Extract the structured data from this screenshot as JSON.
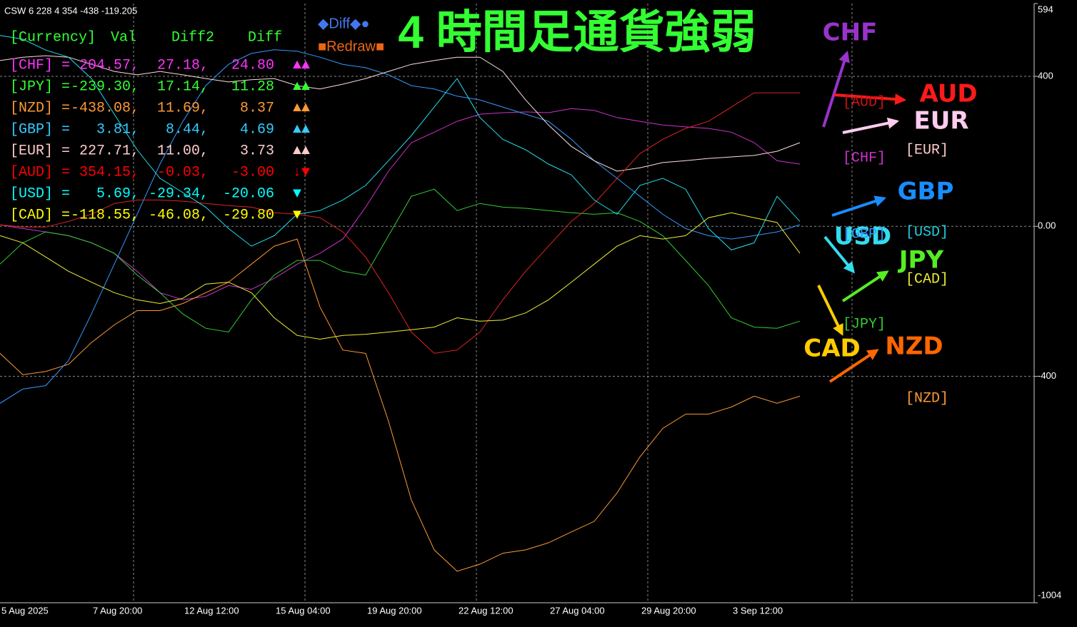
{
  "header": "CSW 6 228 4 354 -438 -119.205",
  "title": "4 時間足通貨強弱",
  "buttons": [
    "◆Diff◆●",
    "■Redraw■"
  ],
  "legend_table": {
    "header": [
      "[Currency]",
      "Val",
      "Diff2",
      "Diff"
    ],
    "rows": [
      {
        "color": "#ff33ff",
        "cells": [
          "[CHF] =",
          "204.57,",
          "27.18,",
          "24.80",
          "▲▲"
        ]
      },
      {
        "color": "#33ff33",
        "cells": [
          "[JPY] =",
          "-239.30,",
          "17.14,",
          "11.28",
          "▲▲"
        ]
      },
      {
        "color": "#ff9933",
        "cells": [
          "[NZD] =",
          "-438.08,",
          "11.69,",
          "8.37",
          "▲▲"
        ]
      },
      {
        "color": "#33ccff",
        "cells": [
          "[GBP] =",
          "3.81,",
          "8.44,",
          "4.69",
          "▲▲"
        ]
      },
      {
        "color": "#ffcccc",
        "cells": [
          "[EUR] =",
          "227.71,",
          "11.00,",
          "3.73",
          "▲▲"
        ]
      },
      {
        "color": "#ff0000",
        "cells": [
          "[AUD] =",
          "354.15,",
          "-0.03,",
          "-3.00",
          "↓▼"
        ]
      },
      {
        "color": "#00ffff",
        "cells": [
          "[USD] =",
          "5.69,",
          "-29.34,",
          "-20.06",
          "▼"
        ]
      },
      {
        "color": "#ffff00",
        "cells": [
          "[CAD] =",
          "-118.55,",
          "-46.08,",
          "-29.80",
          "▼"
        ]
      }
    ]
  },
  "strength_labels": [
    "CHF",
    "AUD",
    "EUR",
    "GBP",
    "USD",
    "JPY",
    "CAD",
    "NZD"
  ],
  "small_labels": [
    "[AUD]",
    "[CHF]",
    "[EUR]",
    "[GBP]",
    "[USD]",
    "[CAD]",
    "[JPY]",
    "[NZD]"
  ],
  "chart_data": {
    "type": "line",
    "categories": [
      "5 Aug 2025",
      null,
      null,
      null,
      "7 Aug 20:00",
      null,
      null,
      null,
      "12 Aug 12:00",
      null,
      null,
      null,
      "15 Aug 04:00",
      null,
      null,
      null,
      "19 Aug 20:00",
      null,
      null,
      null,
      "22 Aug 12:00",
      null,
      null,
      null,
      "27 Aug 04:00",
      null,
      null,
      null,
      "29 Aug 20:00",
      null,
      null,
      null,
      "3 Sep 12:00",
      null,
      null,
      null
    ],
    "ylim": [
      -1004,
      594
    ],
    "yticks": [
      594,
      400,
      {
        "value": 0,
        "label": "0.00"
      },
      -400,
      -1004
    ],
    "grid": true,
    "series": [
      {
        "name": "CHF",
        "color": "#cc33cc",
        "values": [
          4,
          -6,
          -15,
          -25,
          -44,
          -72,
          -120,
          -177,
          -196,
          -187,
          -158,
          -168,
          -139,
          -101,
          -72,
          -34,
          51,
          147,
          223,
          251,
          280,
          299,
          303,
          305,
          303,
          314,
          309,
          290,
          280,
          270,
          265,
          261,
          251,
          223,
          175,
          166
        ]
      },
      {
        "name": "JPY",
        "color": "#33cc33",
        "values": [
          -101,
          -44,
          -15,
          -25,
          -44,
          -72,
          -130,
          -177,
          -234,
          -272,
          -282,
          -196,
          -130,
          -91,
          -91,
          -120,
          -130,
          -25,
          80,
          99,
          42,
          61,
          51,
          48,
          42,
          36,
          32,
          36,
          13,
          -25,
          -91,
          -158,
          -244,
          -269,
          -272,
          -253
        ]
      },
      {
        "name": "NZD",
        "color": "#ff9933",
        "values": [
          -339,
          -396,
          -387,
          -368,
          -310,
          -263,
          -225,
          -225,
          -206,
          -177,
          -149,
          -101,
          -53,
          -34,
          -215,
          -330,
          -339,
          -520,
          -730,
          -863,
          -920,
          -901,
          -872,
          -863,
          -844,
          -815,
          -787,
          -711,
          -615,
          -539,
          -501,
          -501,
          -482,
          -453,
          -472,
          -453
        ]
      },
      {
        "name": "GBP",
        "color": "#3399ff",
        "values": [
          -472,
          -434,
          -425,
          -358,
          -234,
          -101,
          32,
          166,
          280,
          375,
          432,
          461,
          471,
          467,
          451,
          432,
          423,
          404,
          375,
          366,
          347,
          337,
          318,
          299,
          280,
          232,
          175,
          128,
          80,
          32,
          -6,
          -25,
          -34,
          -25,
          -15,
          4
        ]
      },
      {
        "name": "EUR",
        "color": "#ffdddd",
        "values": [
          442,
          451,
          455,
          451,
          432,
          413,
          404,
          413,
          404,
          394,
          385,
          391,
          394,
          375,
          366,
          379,
          394,
          413,
          432,
          442,
          451,
          451,
          413,
          337,
          270,
          213,
          175,
          147,
          156,
          170,
          175,
          181,
          185,
          189,
          200,
          223
        ]
      },
      {
        "name": "AUD",
        "color": "#dd2222",
        "values": [
          4,
          -2,
          -2,
          13,
          32,
          61,
          70,
          70,
          67,
          61,
          55,
          51,
          36,
          32,
          23,
          -15,
          -82,
          -177,
          -282,
          -339,
          -330,
          -282,
          -196,
          -120,
          -53,
          13,
          61,
          128,
          194,
          232,
          261,
          280,
          318,
          356,
          356,
          356
        ]
      },
      {
        "name": "USD",
        "color": "#22ddee",
        "values": [
          509,
          499,
          470,
          451,
          394,
          299,
          204,
          128,
          90,
          51,
          -6,
          -53,
          -25,
          32,
          42,
          70,
          109,
          175,
          242,
          318,
          394,
          290,
          232,
          204,
          166,
          137,
          70,
          32,
          109,
          128,
          99,
          -6,
          -63,
          -44,
          80,
          13
        ]
      },
      {
        "name": "CAD",
        "color": "#eeee33",
        "values": [
          -25,
          -44,
          -82,
          -120,
          -149,
          -177,
          -196,
          -206,
          -192,
          -154,
          -149,
          -177,
          -244,
          -291,
          -301,
          -291,
          -288,
          -282,
          -276,
          -269,
          -244,
          -253,
          -250,
          -231,
          -196,
          -149,
          -101,
          -53,
          -25,
          -34,
          -25,
          23,
          36,
          23,
          10,
          -72
        ]
      }
    ]
  }
}
